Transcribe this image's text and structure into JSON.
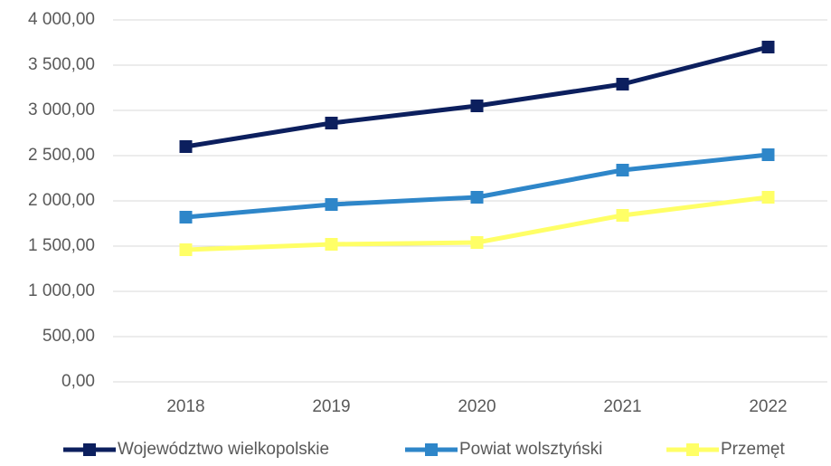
{
  "chart_data": {
    "type": "line",
    "categories": [
      "2018",
      "2019",
      "2020",
      "2021",
      "2022"
    ],
    "series": [
      {
        "name": "Województwo wielkopolskie",
        "color": "#0c1f5e",
        "values": [
          2600,
          2860,
          3050,
          3290,
          3700
        ]
      },
      {
        "name": "Powiat wolsztyński",
        "color": "#2e86c9",
        "values": [
          1820,
          1960,
          2040,
          2340,
          2510
        ]
      },
      {
        "name": "Przemęt",
        "color": "#ffff66",
        "values": [
          1460,
          1520,
          1540,
          1840,
          2040
        ]
      }
    ],
    "ylim": [
      0,
      4000
    ],
    "yticks": [
      {
        "value": 0,
        "label": "0,00"
      },
      {
        "value": 500,
        "label": "500,00"
      },
      {
        "value": 1000,
        "label": "1 000,00"
      },
      {
        "value": 1500,
        "label": "1 500,00"
      },
      {
        "value": 2000,
        "label": "2 000,00"
      },
      {
        "value": 2500,
        "label": "2 500,00"
      },
      {
        "value": 3000,
        "label": "3 000,00"
      },
      {
        "value": 3500,
        "label": "3 500,00"
      },
      {
        "value": 4000,
        "label": "4 000,00"
      }
    ],
    "grid": true,
    "legend": "bottom"
  }
}
